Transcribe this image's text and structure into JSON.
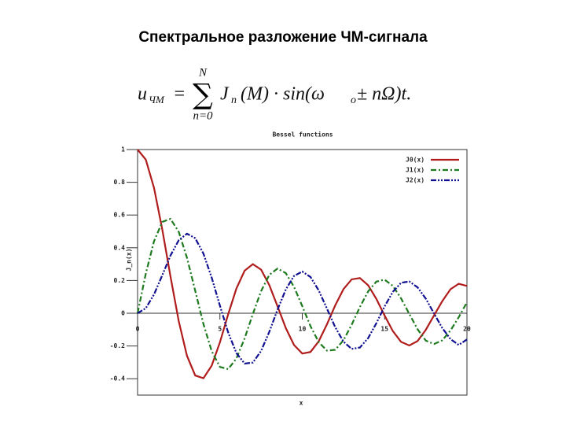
{
  "slide": {
    "title": "Спектральное разложение ЧМ-сигнала",
    "formula": {
      "lhs": "u",
      "lhs_sub": "ЧМ",
      "eq": "=",
      "sum_top": "N",
      "sum_bottom": "n=0",
      "term": "J",
      "term_sub": "n",
      "rest": "(M) · sin(ω",
      "omega_sub": "o",
      "tail": " ± nΩ)t."
    }
  },
  "chart_data": {
    "type": "line",
    "title": "Bessel functions",
    "x_label": "x",
    "y_label": "J_n(x)",
    "x": [
      0,
      0.5,
      1,
      1.5,
      2,
      2.5,
      3,
      3.5,
      4,
      4.5,
      5,
      5.5,
      6,
      6.5,
      7,
      7.5,
      8,
      8.5,
      9,
      9.5,
      10,
      10.5,
      11,
      11.5,
      12,
      12.5,
      13,
      13.5,
      14,
      14.5,
      15,
      15.5,
      16,
      16.5,
      17,
      17.5,
      18,
      18.5,
      19,
      19.5,
      20
    ],
    "series": [
      {
        "name": "J0(x)",
        "color": "#b01c1c",
        "style": "solid",
        "values": [
          1,
          0.9385,
          0.7652,
          0.5118,
          0.2239,
          -0.0484,
          -0.2601,
          -0.3801,
          -0.3971,
          -0.3205,
          -0.1776,
          -0.0068,
          0.1506,
          0.2601,
          0.3001,
          0.2663,
          0.1717,
          0.0419,
          -0.0903,
          -0.1939,
          -0.2459,
          -0.2366,
          -0.1712,
          -0.0677,
          0.0477,
          0.1469,
          0.2069,
          0.215,
          0.1711,
          0.0875,
          -0.0142,
          -0.1092,
          -0.1749,
          -0.1969,
          -0.1699,
          -0.1014,
          -0.0134,
          0.0736,
          0.1466,
          0.18,
          0.167
        ]
      },
      {
        "name": "J1(x)",
        "color": "#1e7a1e",
        "style": "dashdot",
        "values": [
          0,
          0.2423,
          0.4401,
          0.5579,
          0.5767,
          0.4971,
          0.3391,
          0.1374,
          -0.066,
          -0.2311,
          -0.3276,
          -0.3414,
          -0.2767,
          -0.1538,
          -0.0047,
          0.1352,
          0.2346,
          0.2731,
          0.2453,
          0.1613,
          0.0435,
          -0.0789,
          -0.1768,
          -0.2284,
          -0.2234,
          -0.1655,
          -0.0703,
          0.038,
          0.1334,
          0.1934,
          0.2051,
          0.1672,
          0.0904,
          -0.0041,
          -0.0977,
          -0.1672,
          -0.188,
          -0.1655,
          -0.1057,
          -0.0245,
          0.0668
        ]
      },
      {
        "name": "J2(x)",
        "color": "#101090",
        "style": "dashdotdot",
        "values": [
          0,
          0.0306,
          0.1149,
          0.2321,
          0.3528,
          0.4461,
          0.4861,
          0.4586,
          0.3641,
          0.2178,
          0.0466,
          -0.1173,
          -0.2429,
          -0.3074,
          -0.3014,
          -0.2303,
          -0.113,
          0.0223,
          0.1448,
          0.2279,
          0.2546,
          0.2216,
          0.139,
          0.0283,
          -0.0849,
          -0.1734,
          -0.2177,
          -0.2094,
          -0.152,
          -0.0609,
          0.0416,
          0.1308,
          0.1862,
          0.194,
          0.1584,
          0.0893,
          -0.0013,
          -0.0901,
          -0.1578,
          -0.1935,
          -0.1603
        ]
      }
    ],
    "xlim": [
      0,
      20
    ],
    "xticks": [
      0,
      5,
      10,
      15,
      20
    ],
    "ylim": [
      -0.5,
      1
    ],
    "yticks": [
      1,
      0.8,
      0.6,
      0.4,
      0.2,
      0,
      -0.2,
      -0.4
    ],
    "grid": false,
    "legend": "top-right"
  }
}
